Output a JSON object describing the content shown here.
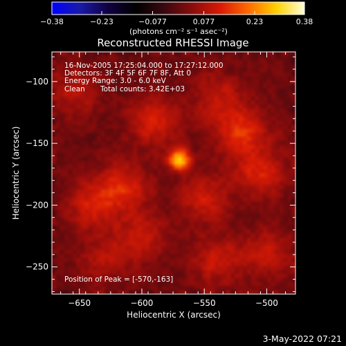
{
  "chart_data": {
    "type": "heatmap",
    "title": "Reconstructed RHESSI Image",
    "xlabel": "Heliocentric X (arcsec)",
    "ylabel": "Heliocentric Y (arcsec)",
    "xlim": [
      -672,
      -477
    ],
    "ylim": [
      -272,
      -76
    ],
    "x_ticks": [
      -650,
      -600,
      -550,
      -500
    ],
    "y_ticks": [
      -100,
      -150,
      -200,
      -250
    ],
    "x_tick_labels": [
      "−650",
      "−600",
      "−550",
      "−500"
    ],
    "y_tick_labels": [
      "−100",
      "−150",
      "−200",
      "−250"
    ],
    "colorbar": {
      "min": -0.38,
      "max": 0.38,
      "tick_values": [
        -0.38,
        -0.23,
        -0.077,
        0.077,
        0.23,
        0.38
      ],
      "tick_labels": [
        "−0.38",
        "−0.23",
        "−0.077",
        "0.077",
        "0.23",
        "0.38"
      ],
      "units": "(photons cm⁻² s⁻¹ asec⁻²)",
      "stops": [
        "#0000ff",
        "#1a1aa8",
        "#100040",
        "#000000",
        "#3a0810",
        "#8a0c0c",
        "#d81a05",
        "#ff6a00",
        "#ffd000",
        "#ffffd8"
      ]
    },
    "peak": {
      "x": -570,
      "y": -163,
      "value": 0.38
    },
    "emission_regions": [
      {
        "x": -590,
        "y": -132,
        "value": 0.12
      },
      {
        "x": -540,
        "y": -112,
        "value": 0.09
      },
      {
        "x": -520,
        "y": -140,
        "value": 0.14
      },
      {
        "x": -505,
        "y": -175,
        "value": 0.12
      },
      {
        "x": -550,
        "y": -195,
        "value": 0.1
      },
      {
        "x": -615,
        "y": -185,
        "value": 0.13
      },
      {
        "x": -640,
        "y": -200,
        "value": 0.11
      },
      {
        "x": -600,
        "y": -225,
        "value": 0.1
      },
      {
        "x": -540,
        "y": -245,
        "value": 0.1
      },
      {
        "x": -500,
        "y": -240,
        "value": 0.09
      },
      {
        "x": -655,
        "y": -110,
        "value": 0.08
      },
      {
        "x": -630,
        "y": -245,
        "value": 0.07
      }
    ]
  },
  "annotations": {
    "time_range": "16-Nov-2005 17:25:04.000 to 17:27:12.000",
    "detectors": "Detectors: 3F 4F 5F 6F 7F 8F, Att 0",
    "energy_range": "Energy Range: 3.0 - 6.0 keV",
    "clean_label": "Clean",
    "total_counts": "Total counts: 3.42E+03",
    "peak_position": "Position of Peak = [-570,-163]"
  },
  "footer": {
    "date": "3-May-2022 07:21"
  }
}
